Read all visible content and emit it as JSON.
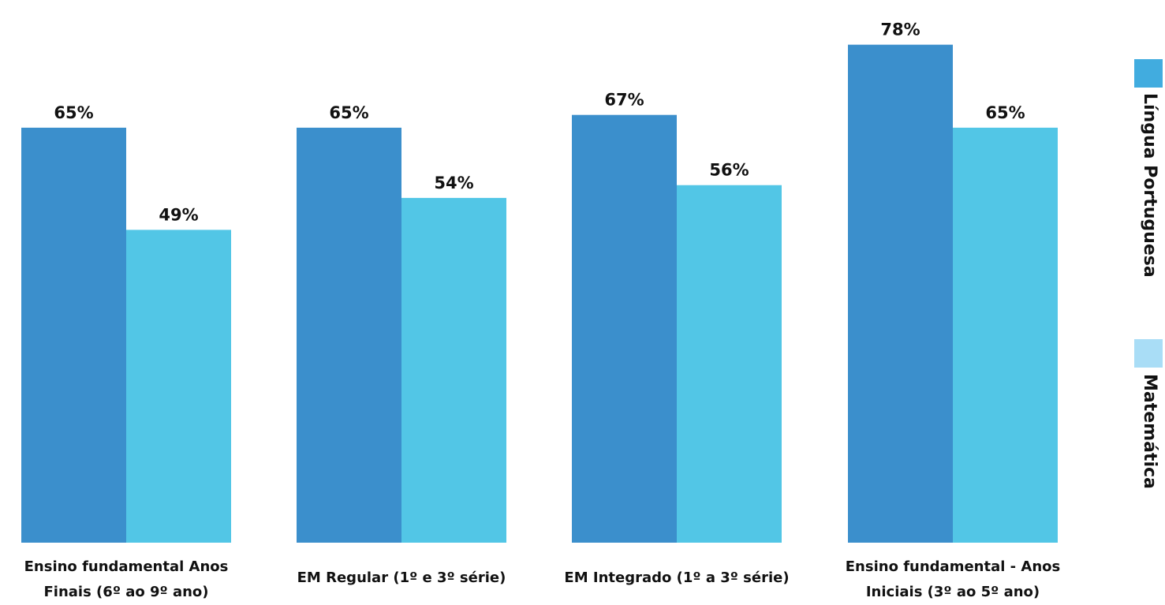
{
  "chart_data": {
    "type": "bar",
    "categories": [
      [
        "Ensino fundamental Anos",
        "Finais (6º ao 9º ano)"
      ],
      [
        "EM Regular (1º e 3º série)"
      ],
      [
        "EM Integrado (1º a 3º série)"
      ],
      [
        "Ensino fundamental - Anos",
        "Iniciais (3º ao 5º ano)"
      ]
    ],
    "series": [
      {
        "name": "Língua Portuguesa",
        "values": [
          65,
          65,
          67,
          78
        ],
        "labels": [
          "65%",
          "65%",
          "67%",
          "78%"
        ],
        "color": "#3b8fcc"
      },
      {
        "name": "Matemática",
        "values": [
          49,
          54,
          56,
          65
        ],
        "labels": [
          "49%",
          "54%",
          "56%",
          "65%"
        ],
        "color": "#52c6e6"
      }
    ],
    "ylim": [
      0,
      85
    ],
    "grid": false,
    "legend_position": "right, rotated vertical",
    "legend_colors": [
      "#41acdf",
      "#a9ddf6"
    ]
  }
}
